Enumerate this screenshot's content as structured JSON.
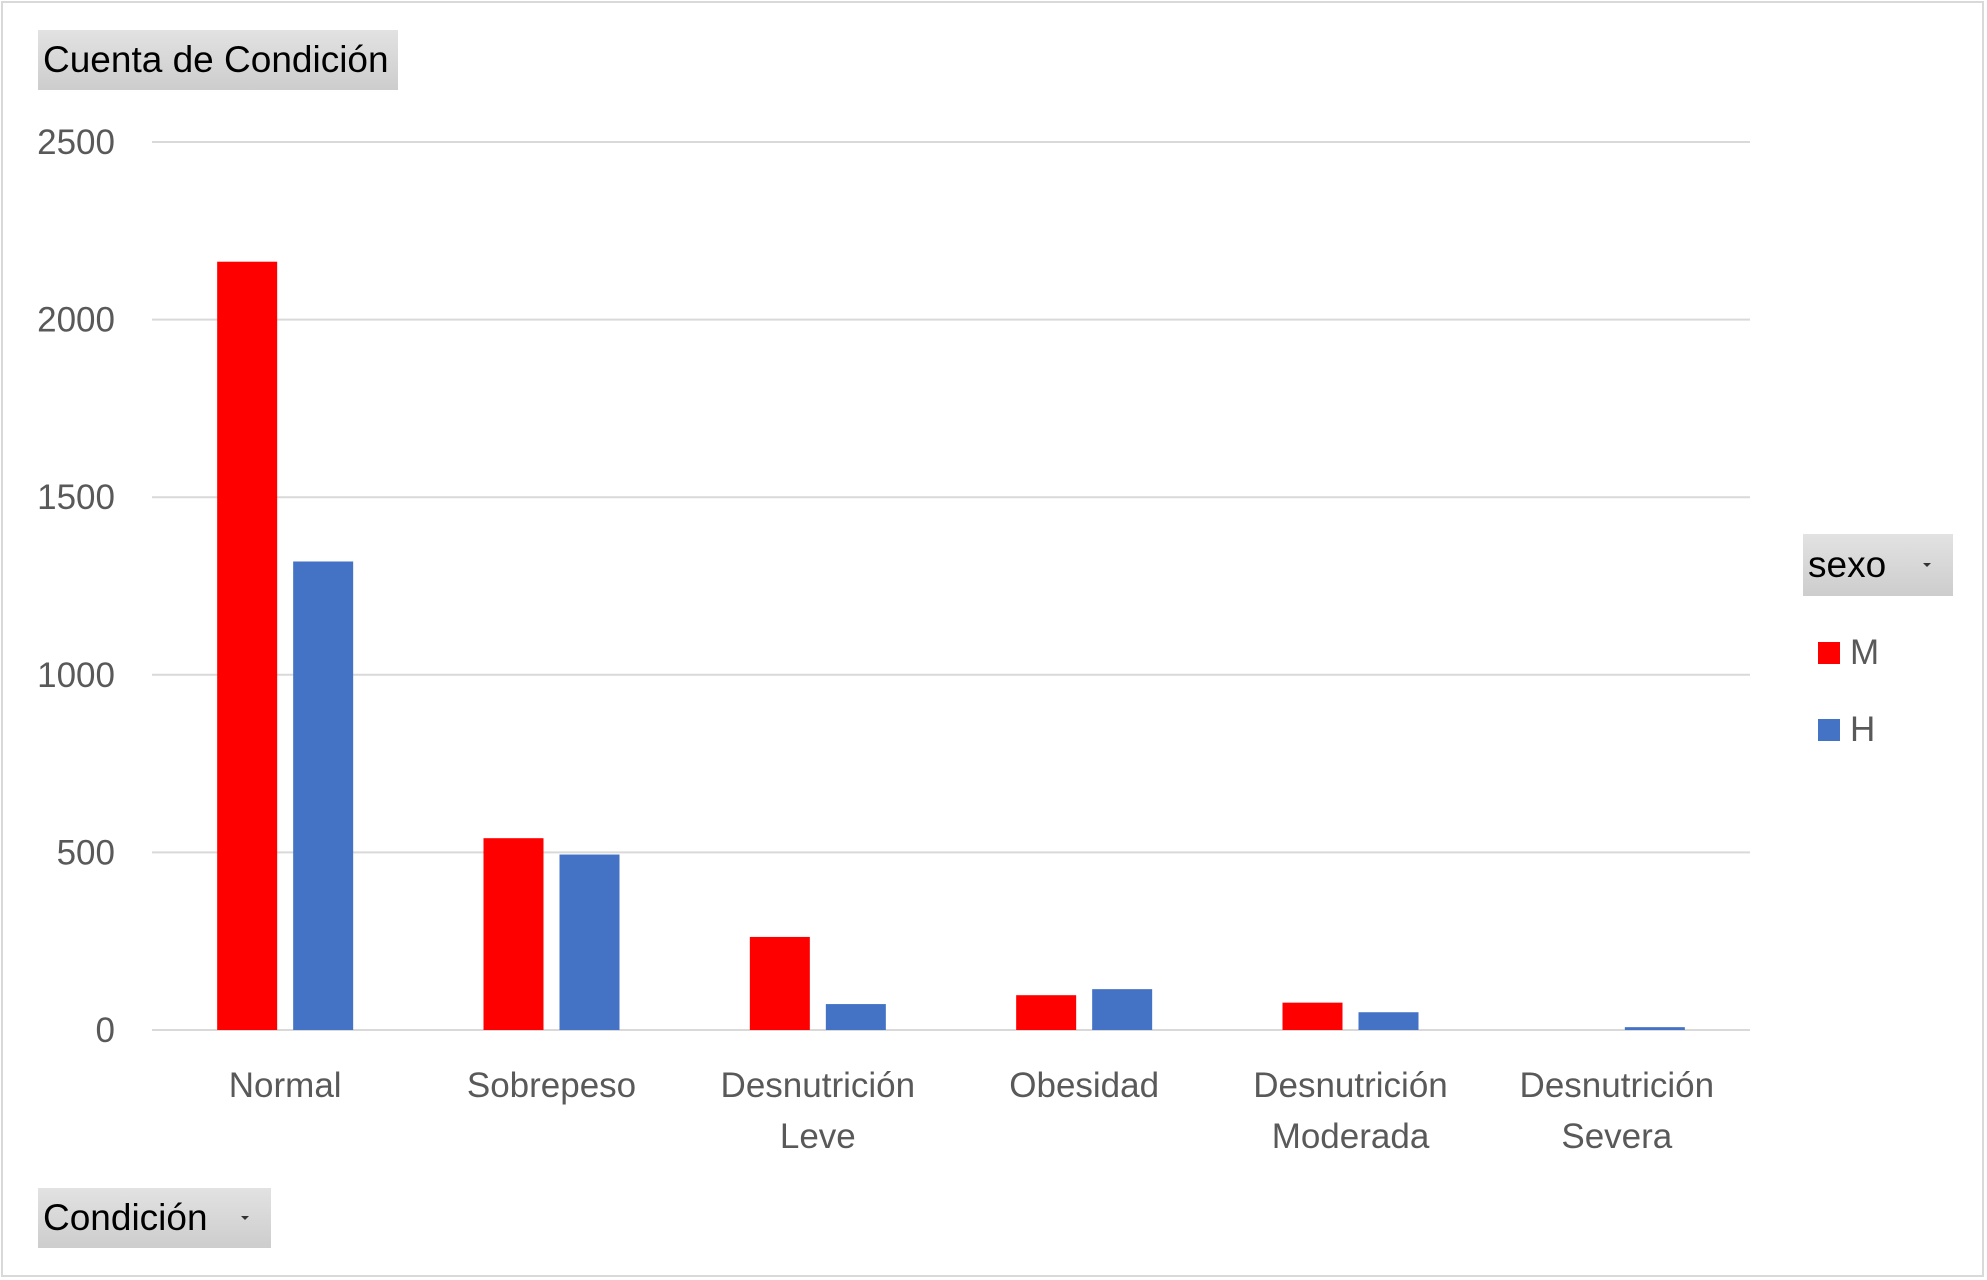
{
  "value_field_button": {
    "label": "Cuenta de Condición"
  },
  "axis_field_button": {
    "label": "Condición"
  },
  "legend_field_button": {
    "label": "sexo"
  },
  "chart_data": {
    "type": "bar",
    "title": "",
    "xlabel": "",
    "ylabel": "",
    "ylim": [
      0,
      2500
    ],
    "yticks": [
      "0",
      "500",
      "1000",
      "1500",
      "2000",
      "2500"
    ],
    "grid": true,
    "legend_position": "right",
    "categories": [
      [
        "Normal"
      ],
      [
        "Sobrepeso"
      ],
      [
        "Desnutrición",
        "Leve"
      ],
      [
        "Obesidad"
      ],
      [
        "Desnutrición",
        "Moderada"
      ],
      [
        "Desnutrición",
        "Severa"
      ]
    ],
    "series": [
      {
        "name": "M",
        "color": "#ff0000",
        "values": [
          2163,
          540,
          262,
          98,
          77,
          0
        ]
      },
      {
        "name": "H",
        "color": "#4472c4",
        "values": [
          1319,
          494,
          73,
          115,
          50,
          8
        ]
      }
    ]
  }
}
